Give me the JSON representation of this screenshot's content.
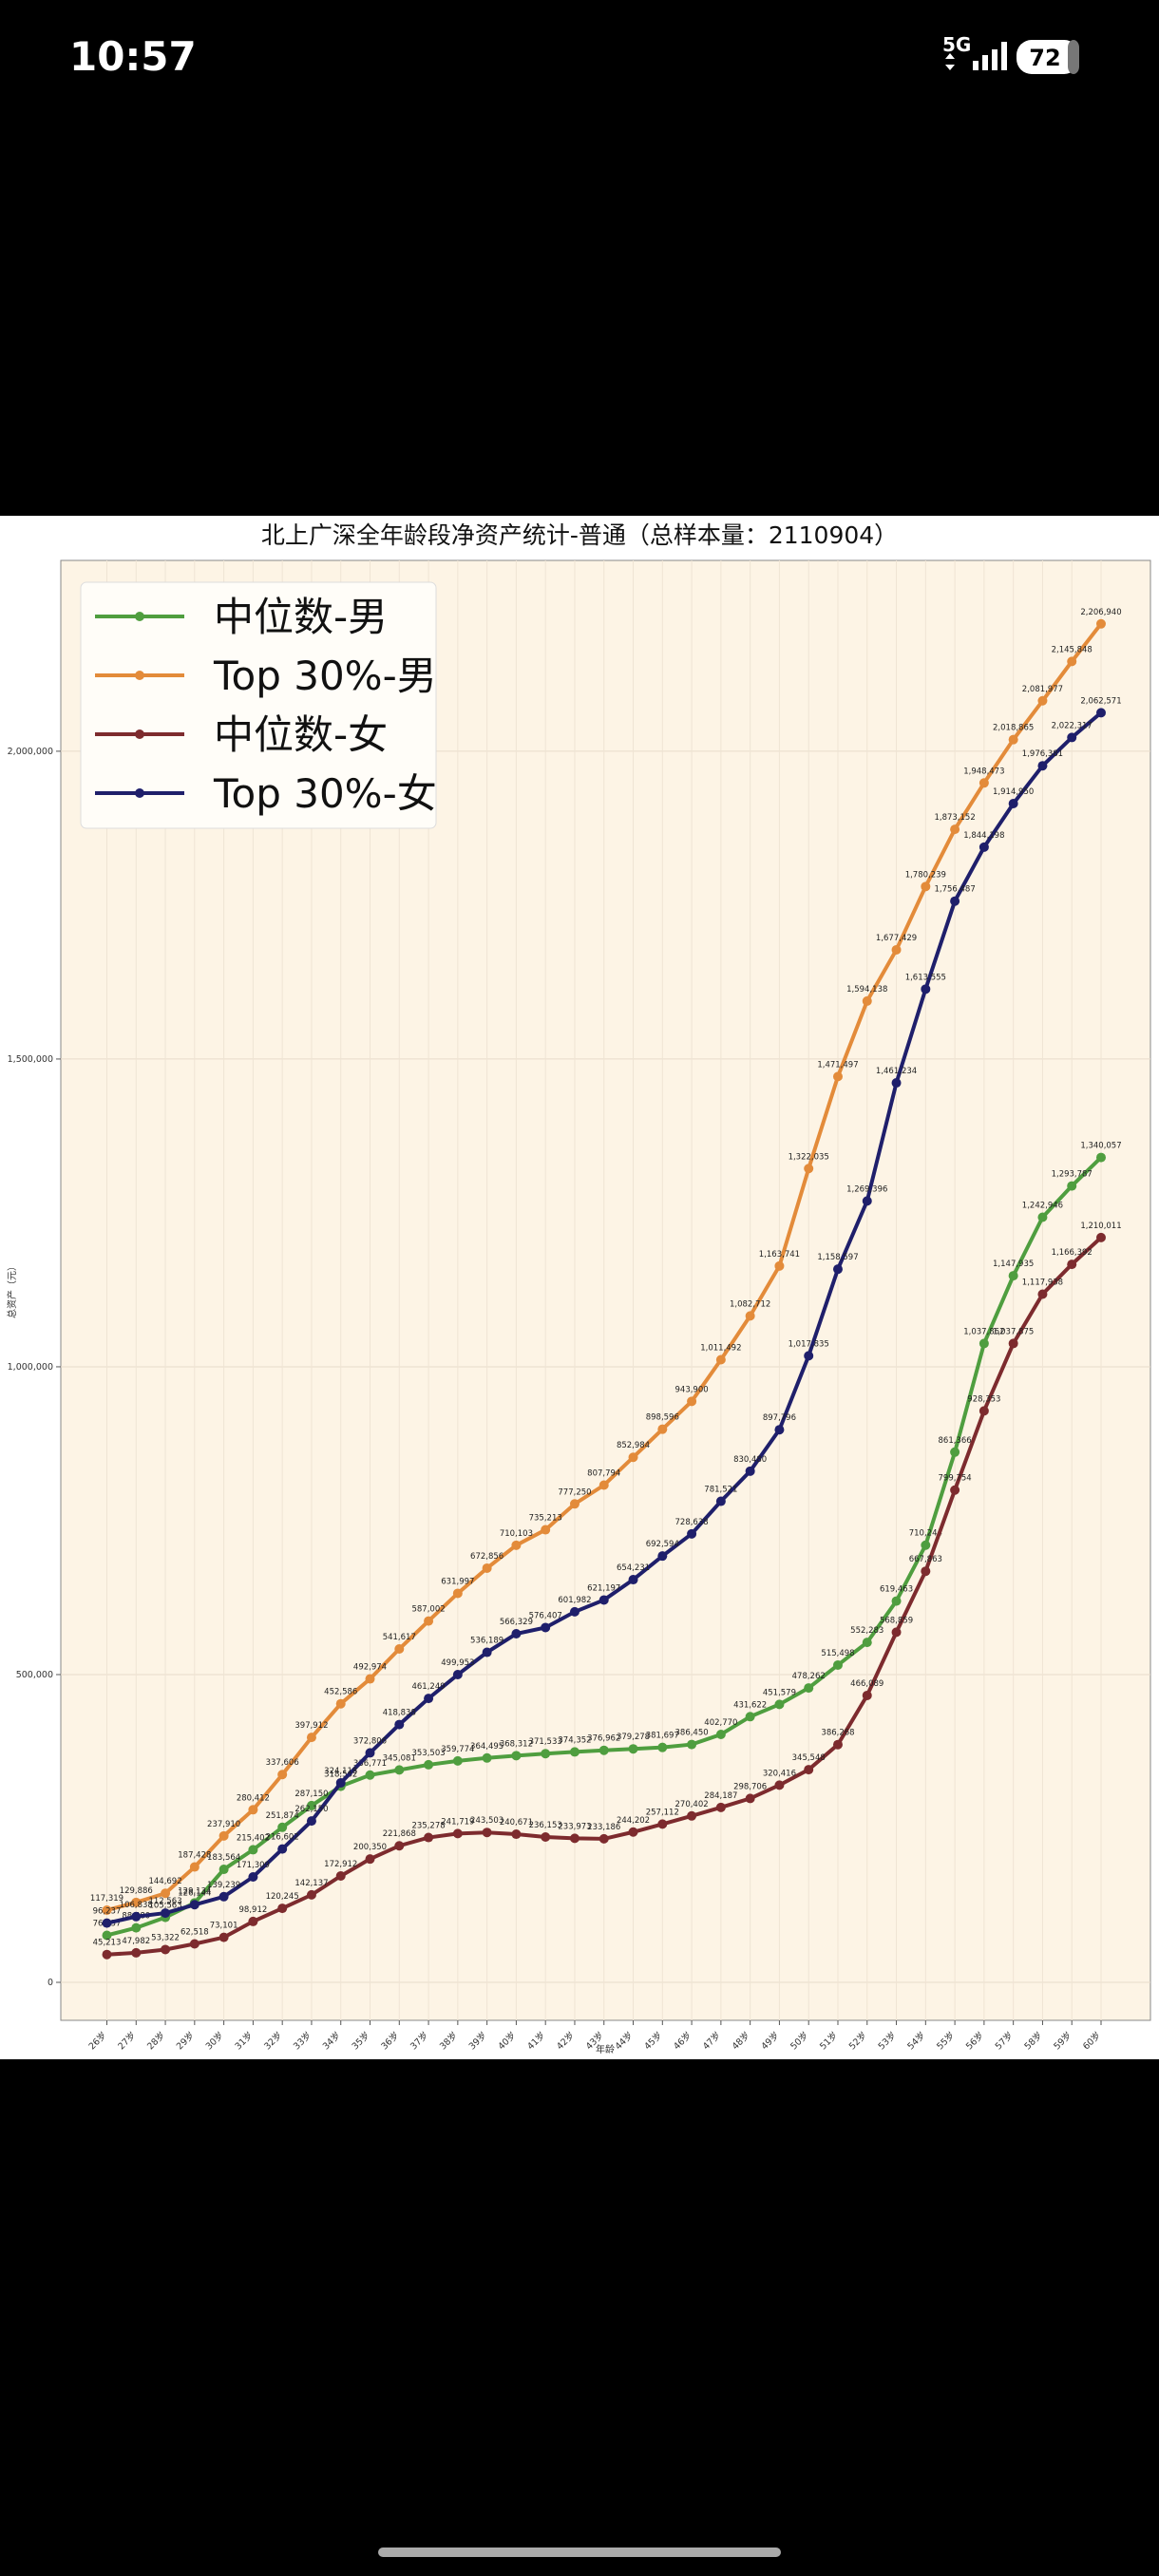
{
  "status_bar": {
    "time": "10:57",
    "network": "5G",
    "battery": "72"
  },
  "chart_data": {
    "type": "line",
    "title": "北上广深全年龄段净资产统计-普通（总样本量：2110904）",
    "x_label": "年龄",
    "y_label": "总资产（元）",
    "categories": [
      "26岁",
      "27岁",
      "28岁",
      "29岁",
      "30岁",
      "31岁",
      "32岁",
      "33岁",
      "34岁",
      "35岁",
      "36岁",
      "37岁",
      "38岁",
      "39岁",
      "40岁",
      "41岁",
      "42岁",
      "43岁",
      "44岁",
      "45岁",
      "46岁",
      "47岁",
      "48岁",
      "49岁",
      "50岁",
      "51岁",
      "52岁",
      "53岁",
      "54岁",
      "55岁",
      "56岁",
      "57岁",
      "58岁",
      "59岁",
      "60岁"
    ],
    "ylim": [
      -61700,
      2310000
    ],
    "yticks": [
      0,
      {
        "value": 500000,
        "label": "500,000"
      },
      {
        "value": 1000000,
        "label": "1,000,000"
      },
      {
        "value": 1500000,
        "label": "1,500,000"
      },
      {
        "value": 2000000,
        "label": "2,000,000"
      }
    ],
    "grid": true,
    "legend": "upper left",
    "series": [
      {
        "name": "中位数-男",
        "color": "#4f9e3f",
        "values": [
          76437,
          88580,
          105563,
          129134,
          183564,
          215402,
          251874,
          287150,
          318562,
          336771,
          345081,
          353503,
          359774,
          364495,
          368312,
          371533,
          374352,
          376962,
          379278,
          381697,
          386450,
          402770,
          431622,
          451579,
          478262,
          515498,
          552283,
          619463,
          710244,
          861366,
          1037862,
          1147935,
          1242946,
          1293787,
          1340057
        ],
        "value_labels": [
          "76,437",
          "88,580",
          "105,563",
          "129,134",
          "183,564",
          "215,402",
          "251,874",
          "287,150",
          "318,562",
          "336,771",
          "345,081",
          "353,503",
          "359,774",
          "364,495",
          "368,312",
          "371,533",
          "374,352",
          "376,962",
          "379,278",
          "381,697",
          "386,450",
          "402,770",
          "431,622",
          "451,579",
          "478,262",
          "515,498",
          "552,283",
          "619,463",
          "710,244",
          "861,366",
          "1,037,862",
          "1,147,935",
          "1,242,946",
          "1,293,787",
          "1,340,057"
        ]
      },
      {
        "name": "Top 30%-男",
        "color": "#e38b3a",
        "values": [
          117319,
          129886,
          144692,
          187428,
          237910,
          280412,
          337606,
          397912,
          452586,
          492974,
          541617,
          587002,
          631997,
          672856,
          710103,
          735213,
          777250,
          807794,
          852984,
          898596,
          943900,
          1011492,
          1082712,
          1163741,
          1322035,
          1471497,
          1594138,
          1677429,
          1780239,
          1873152,
          1948473,
          2018865,
          2081977,
          2145848,
          2206940
        ],
        "value_labels": [
          "117,319",
          "129,886",
          "144,692",
          "187,428",
          "237,910",
          "280,412",
          "337,606",
          "397,912",
          "452,586",
          "492,974",
          "541,617",
          "587,002",
          "631,997",
          "672,856",
          "710,103",
          "735,213",
          "777,250",
          "807,794",
          "852,984",
          "898,596",
          "943,900",
          "1,011,492",
          "1,082,712",
          "1,163,741",
          "1,322,035",
          "1,471,497",
          "1,594,138",
          "1,677,429",
          "1,780,239",
          "1,873,152",
          "1,948,473",
          "2,018,865",
          "2,081,977",
          "2,145,848",
          "2,206,940"
        ]
      },
      {
        "name": "中位数-女",
        "color": "#7d2b2e",
        "values": [
          45213,
          47982,
          53322,
          62518,
          73101,
          98912,
          120245,
          142137,
          172912,
          200350,
          221868,
          235278,
          241719,
          243503,
          240671,
          236153,
          233973,
          233186,
          244202,
          257112,
          270402,
          284187,
          298706,
          320416,
          345548,
          386268,
          466089,
          568859,
          667863,
          799754,
          928353,
          1037875,
          1117938,
          1166392,
          1210011
        ],
        "value_labels": [
          "45,213",
          "47,982",
          "53,322",
          "62,518",
          "73,101",
          "98,912",
          "120,245",
          "142,137",
          "172,912",
          "200,350",
          "221,868",
          "235,278",
          "241,719",
          "243,503",
          "240,671",
          "236,153",
          "233,973",
          "233,186",
          "244,202",
          "257,112",
          "270,402",
          "284,187",
          "298,706",
          "320,416",
          "345,548",
          "386,268",
          "466,089",
          "568,859",
          "667,863",
          "799,754",
          "928,353",
          "1,037,875",
          "1,117,938",
          "1,166,392",
          "1,210,011"
        ]
      },
      {
        "name": "Top 30%-女",
        "color": "#1f1f6b",
        "values": [
          96237,
          106838,
          112563,
          126144,
          139239,
          171309,
          216602,
          262150,
          324118,
          372806,
          418838,
          461249,
          499953,
          536189,
          566329,
          576407,
          601982,
          621197,
          654231,
          692594,
          728638,
          781521,
          830480,
          897796,
          1017835,
          1158597,
          1269396,
          1461234,
          1613555,
          1756487,
          1844198,
          1914950,
          1976381,
          2022317,
          2062571
        ],
        "value_labels": [
          "96,237",
          "106,838",
          "112,563",
          "126,144",
          "139,239",
          "171,309",
          "216,602",
          "262,150",
          "324,118",
          "372,806",
          "418,838",
          "461,249",
          "499,953",
          "536,189",
          "566,329",
          "576,407",
          "601,982",
          "621,197",
          "654,231",
          "692,594",
          "728,638",
          "781,521",
          "830,480",
          "897,796",
          "1,017,835",
          "1,158,597",
          "1,269,396",
          "1,461,234",
          "1,613,555",
          "1,756,487",
          "1,844,198",
          "1,914,950",
          "1,976,381",
          "2,022,317",
          "2,062,571"
        ]
      }
    ]
  }
}
